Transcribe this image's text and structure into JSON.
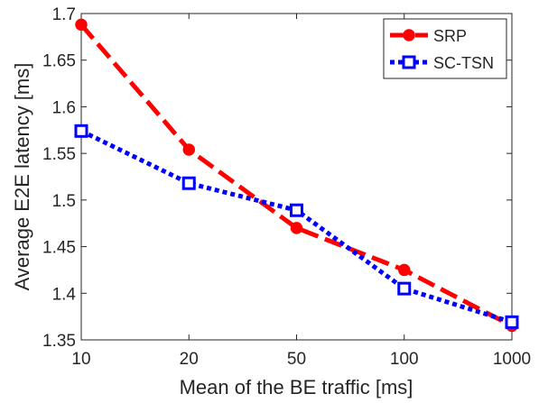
{
  "chart_data": {
    "type": "line",
    "categories": [
      "10",
      "20",
      "50",
      "100",
      "1000"
    ],
    "xlabel": "Mean of the BE traffic [ms]",
    "ylabel": "Average E2E latency [ms]",
    "ylim": [
      1.35,
      1.7
    ],
    "yticks": [
      "1.35",
      "1.4",
      "1.45",
      "1.5",
      "1.55",
      "1.6",
      "1.65",
      "1.7"
    ],
    "grid": false,
    "legend_position": "top-right",
    "series": [
      {
        "name": "SRP",
        "color": "#ff0000",
        "marker": "circle",
        "line_style": "dashed",
        "values": [
          1.688,
          1.554,
          1.47,
          1.425,
          1.365
        ]
      },
      {
        "name": "SC-TSN",
        "color": "#0000ff",
        "marker": "square",
        "line_style": "dotted",
        "values": [
          1.574,
          1.518,
          1.489,
          1.405,
          1.369
        ]
      }
    ]
  }
}
